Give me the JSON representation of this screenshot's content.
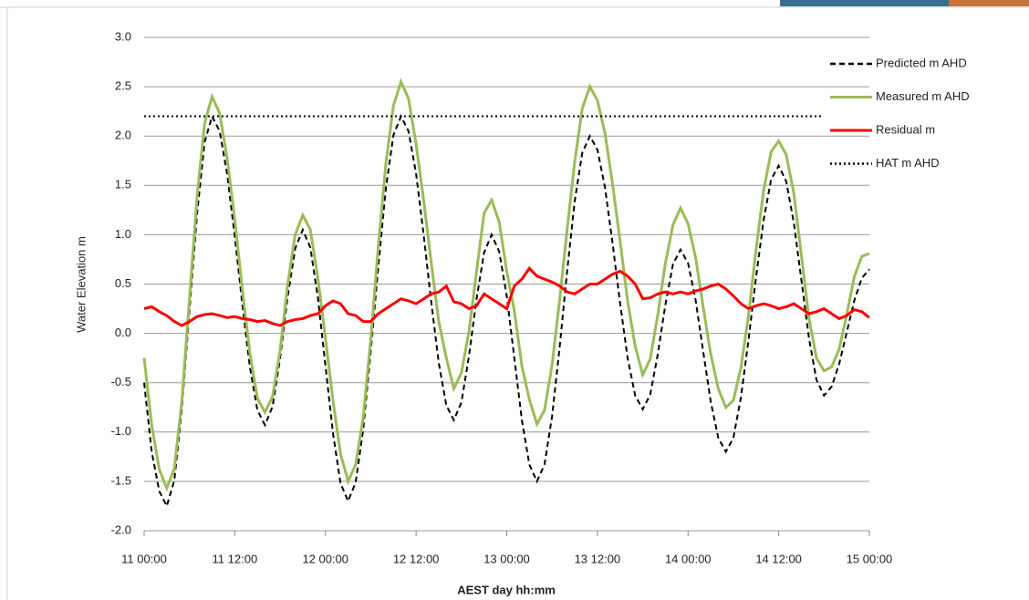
{
  "chart_data": {
    "type": "line",
    "x_label": "AEST  day hh:mm",
    "y_label": "Water Elevation  m",
    "x": [
      "11 00:00",
      "11 01:00",
      "11 02:00",
      "11 03:00",
      "11 04:00",
      "11 05:00",
      "11 06:00",
      "11 07:00",
      "11 08:00",
      "11 09:00",
      "11 10:00",
      "11 11:00",
      "11 12:00",
      "11 13:00",
      "11 14:00",
      "11 15:00",
      "11 16:00",
      "11 17:00",
      "11 18:00",
      "11 19:00",
      "11 20:00",
      "11 21:00",
      "11 22:00",
      "11 23:00",
      "12 00:00",
      "12 01:00",
      "12 02:00",
      "12 03:00",
      "12 04:00",
      "12 05:00",
      "12 06:00",
      "12 07:00",
      "12 08:00",
      "12 09:00",
      "12 10:00",
      "12 11:00",
      "12 12:00",
      "12 13:00",
      "12 14:00",
      "12 15:00",
      "12 16:00",
      "12 17:00",
      "12 18:00",
      "12 19:00",
      "12 20:00",
      "12 21:00",
      "12 22:00",
      "12 23:00",
      "13 00:00",
      "13 01:00",
      "13 02:00",
      "13 03:00",
      "13 04:00",
      "13 05:00",
      "13 06:00",
      "13 07:00",
      "13 08:00",
      "13 09:00",
      "13 10:00",
      "13 11:00",
      "13 12:00",
      "13 13:00",
      "13 14:00",
      "13 15:00",
      "13 16:00",
      "13 17:00",
      "13 18:00",
      "13 19:00",
      "13 20:00",
      "13 21:00",
      "13 22:00",
      "13 23:00",
      "14 00:00",
      "14 01:00",
      "14 02:00",
      "14 03:00",
      "14 04:00",
      "14 05:00",
      "14 06:00",
      "14 07:00",
      "14 08:00",
      "14 09:00",
      "14 10:00",
      "14 11:00",
      "14 12:00",
      "14 13:00",
      "14 14:00",
      "14 15:00",
      "14 16:00",
      "14 17:00",
      "14 18:00",
      "14 19:00",
      "14 20:00",
      "14 21:00",
      "14 22:00",
      "14 23:00",
      "15 00:00"
    ],
    "series": [
      {
        "name": "Predicted m AHD",
        "color": "#000000",
        "style": "dashed",
        "values": [
          -0.5,
          -1.2,
          -1.6,
          -1.75,
          -1.49,
          -0.76,
          0.23,
          1.21,
          1.94,
          2.2,
          2.05,
          1.61,
          0.98,
          0.29,
          -0.34,
          -0.78,
          -0.93,
          -0.74,
          -0.25,
          0.37,
          0.86,
          1.05,
          0.87,
          0.36,
          -0.33,
          -1.01,
          -1.52,
          -1.7,
          -1.51,
          -0.97,
          -0.18,
          0.68,
          1.47,
          2.01,
          2.2,
          2.05,
          1.62,
          1.0,
          0.32,
          -0.3,
          -0.73,
          -0.88,
          -0.7,
          -0.23,
          0.35,
          0.82,
          1.0,
          0.83,
          0.38,
          -0.25,
          -0.88,
          -1.33,
          -1.5,
          -1.33,
          -0.84,
          -0.14,
          0.64,
          1.34,
          1.83,
          2.0,
          1.86,
          1.48,
          0.92,
          0.31,
          -0.25,
          -0.63,
          -0.77,
          -0.62,
          -0.21,
          0.29,
          0.7,
          0.85,
          0.71,
          0.34,
          -0.18,
          -0.69,
          -1.06,
          -1.2,
          -1.06,
          -0.65,
          -0.07,
          0.57,
          1.15,
          1.56,
          1.7,
          1.54,
          1.12,
          0.54,
          -0.05,
          -0.47,
          -0.63,
          -0.54,
          -0.31,
          0.01,
          0.33,
          0.56,
          0.65
        ]
      },
      {
        "name": "Measured m AHD",
        "color": "#9bbb59",
        "style": "solid",
        "values": [
          -0.25,
          -0.93,
          -1.38,
          -1.57,
          -1.37,
          -0.68,
          0.35,
          1.38,
          2.13,
          2.4,
          2.23,
          1.77,
          1.15,
          0.44,
          -0.2,
          -0.66,
          -0.8,
          -0.64,
          -0.17,
          0.49,
          1.0,
          1.2,
          1.05,
          0.56,
          -0.05,
          -0.68,
          -1.22,
          -1.5,
          -1.33,
          -0.85,
          -0.06,
          0.88,
          1.72,
          2.31,
          2.55,
          2.38,
          1.92,
          1.35,
          0.72,
          0.12,
          -0.25,
          -0.56,
          -0.4,
          0.02,
          0.63,
          1.22,
          1.35,
          1.13,
          0.63,
          0.23,
          -0.33,
          -0.67,
          -0.92,
          -0.78,
          -0.32,
          0.34,
          1.06,
          1.74,
          2.28,
          2.5,
          2.36,
          2.03,
          1.52,
          0.94,
          0.33,
          -0.13,
          -0.42,
          -0.26,
          0.19,
          0.71,
          1.1,
          1.27,
          1.11,
          0.77,
          0.27,
          -0.21,
          -0.56,
          -0.75,
          -0.68,
          -0.35,
          0.18,
          0.85,
          1.45,
          1.84,
          1.95,
          1.81,
          1.42,
          0.79,
          0.15,
          -0.25,
          -0.38,
          -0.34,
          -0.16,
          0.19,
          0.57,
          0.78,
          0.81
        ]
      },
      {
        "name": "Residual m",
        "color": "#ff0000",
        "style": "solid",
        "values": [
          0.25,
          0.27,
          0.22,
          0.18,
          0.12,
          0.08,
          0.12,
          0.17,
          0.19,
          0.2,
          0.18,
          0.16,
          0.17,
          0.15,
          0.14,
          0.12,
          0.13,
          0.1,
          0.08,
          0.12,
          0.14,
          0.15,
          0.18,
          0.2,
          0.28,
          0.33,
          0.3,
          0.2,
          0.18,
          0.12,
          0.12,
          0.2,
          0.25,
          0.3,
          0.35,
          0.33,
          0.3,
          0.35,
          0.4,
          0.42,
          0.48,
          0.32,
          0.3,
          0.25,
          0.28,
          0.4,
          0.35,
          0.3,
          0.25,
          0.48,
          0.55,
          0.66,
          0.58,
          0.55,
          0.52,
          0.48,
          0.42,
          0.4,
          0.45,
          0.5,
          0.5,
          0.55,
          0.6,
          0.63,
          0.58,
          0.5,
          0.35,
          0.36,
          0.4,
          0.42,
          0.4,
          0.42,
          0.4,
          0.43,
          0.45,
          0.48,
          0.5,
          0.45,
          0.38,
          0.3,
          0.25,
          0.28,
          0.3,
          0.28,
          0.25,
          0.27,
          0.3,
          0.25,
          0.2,
          0.22,
          0.25,
          0.2,
          0.15,
          0.18,
          0.24,
          0.22,
          0.16
        ]
      },
      {
        "name": "HAT m AHD",
        "color": "#000000",
        "style": "dotted",
        "value": 2.2
      }
    ],
    "xticks": [
      "11 00:00",
      "11 12:00",
      "12 00:00",
      "12 12:00",
      "13 00:00",
      "13 12:00",
      "14 00:00",
      "14 12:00",
      "15 00:00"
    ],
    "ylim": [
      -2.0,
      3.0
    ],
    "yticks": [
      {
        "value": -2.0,
        "label": "-2.0"
      },
      -1.5,
      {
        "value": -1.0,
        "label": "-1.0"
      },
      -0.5,
      {
        "value": 0.0,
        "label": "0.0"
      },
      0.5,
      {
        "value": 1.0,
        "label": "1.0"
      },
      1.5,
      {
        "value": 2.0,
        "label": "2.0"
      },
      2.5,
      {
        "value": 3.0,
        "label": "3.0"
      }
    ],
    "grid": true,
    "legend": "right"
  }
}
